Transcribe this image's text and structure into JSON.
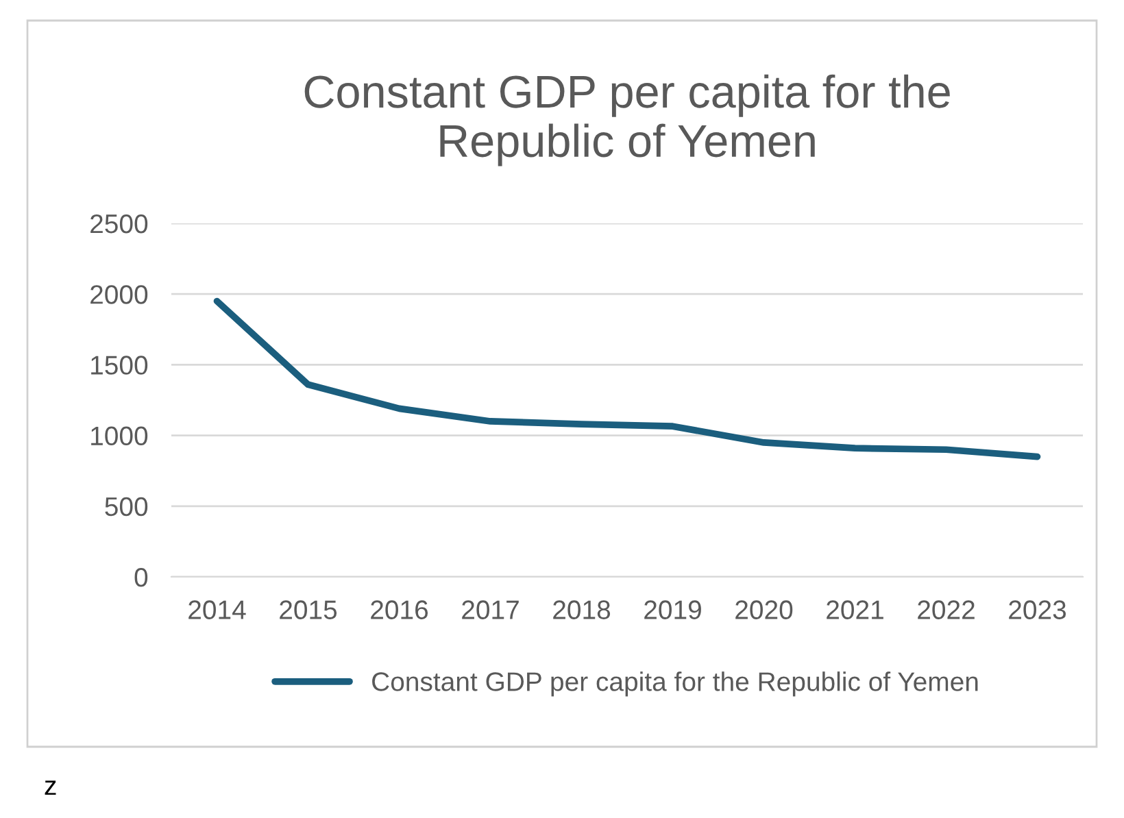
{
  "chart_data": {
    "type": "line",
    "title": "Constant GDP per capita for the\nRepublic of Yemen",
    "categories": [
      "2014",
      "2015",
      "2016",
      "2017",
      "2018",
      "2019",
      "2020",
      "2021",
      "2022",
      "2023"
    ],
    "series": [
      {
        "name": "Constant GDP per capita for the Republic of Yemen",
        "color": "#1b5e7e",
        "values": [
          1950,
          1360,
          1190,
          1100,
          1080,
          1065,
          950,
          910,
          900,
          850
        ]
      }
    ],
    "ylim": [
      0,
      2500
    ],
    "yticks": [
      0,
      500,
      1000,
      1500,
      2000,
      2500
    ],
    "grid": "y",
    "legend": "bottom",
    "marker": "none",
    "line_style": "solid",
    "annotations": [
      "z"
    ]
  }
}
